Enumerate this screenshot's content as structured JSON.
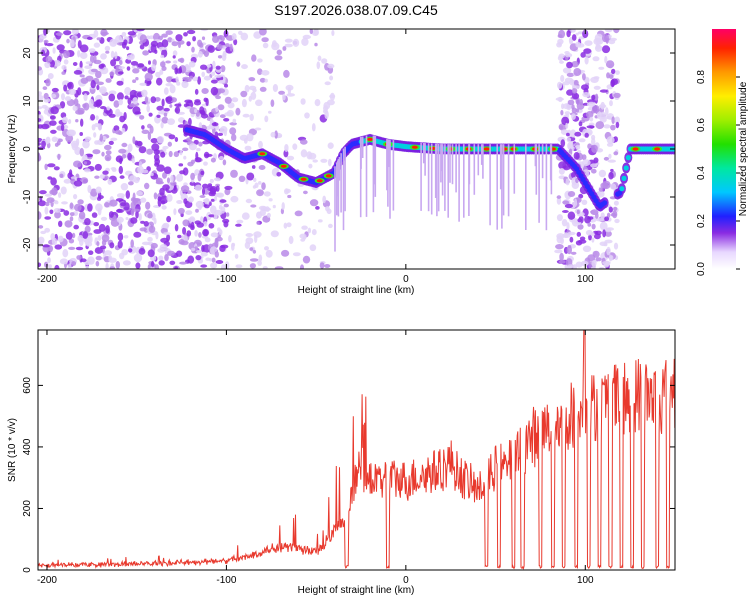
{
  "title": "S197.2026.038.07.09.C45",
  "chart_data": [
    {
      "type": "heatmap",
      "xlabel": "Height of straight line (km)",
      "ylabel": "Frequency (Hz)",
      "xlim": [
        -205,
        150
      ],
      "ylim": [
        -25,
        25
      ],
      "xticks": [
        -200,
        -100,
        0,
        100
      ],
      "yticks": [
        -20,
        -10,
        0,
        10,
        20
      ],
      "colorbar": {
        "label": "Normalized spectral amplitude",
        "range": [
          0,
          1
        ],
        "ticks": [
          "0.0",
          "0.2",
          "0.4",
          "0.6",
          "0.8"
        ]
      },
      "ridge": {
        "x": [
          -122,
          -112,
          -100,
          -90,
          -80,
          -70,
          -60,
          -50,
          -40,
          -35,
          -30,
          -20,
          -10,
          0,
          20,
          40,
          60,
          85,
          95,
          108,
          115,
          120,
          125,
          150
        ],
        "freq": [
          4,
          3,
          0,
          -2,
          -1,
          -3,
          -6,
          -7,
          -5,
          -1,
          1,
          2,
          1,
          0.5,
          0,
          0,
          0,
          0,
          -4,
          -12,
          -10,
          -9,
          0,
          0
        ]
      }
    },
    {
      "type": "line",
      "xlabel": "Height of straight line (km)",
      "ylabel": "SNR (10 * v/v)",
      "xlim": [
        -205,
        150
      ],
      "ylim": [
        0,
        780
      ],
      "xticks": [
        -200,
        -100,
        0,
        100
      ],
      "yticks": [
        0,
        200,
        400,
        600
      ],
      "series": [
        {
          "name": "SNR",
          "color": "#e8392d",
          "x": [
            -205,
            -150,
            -120,
            -100,
            -90,
            -80,
            -70,
            -60,
            -50,
            -40,
            -35,
            -30,
            -25,
            -20,
            -15,
            -10,
            0,
            10,
            20,
            25,
            30,
            40,
            45,
            50,
            55,
            60,
            70,
            80,
            90,
            100,
            110,
            120,
            130,
            140,
            150
          ],
          "value": [
            15,
            20,
            25,
            30,
            40,
            60,
            80,
            70,
            60,
            120,
            150,
            260,
            330,
            300,
            280,
            300,
            290,
            310,
            330,
            350,
            310,
            260,
            280,
            340,
            330,
            360,
            430,
            460,
            500,
            520,
            540,
            560,
            570,
            560,
            580
          ]
        }
      ]
    }
  ]
}
